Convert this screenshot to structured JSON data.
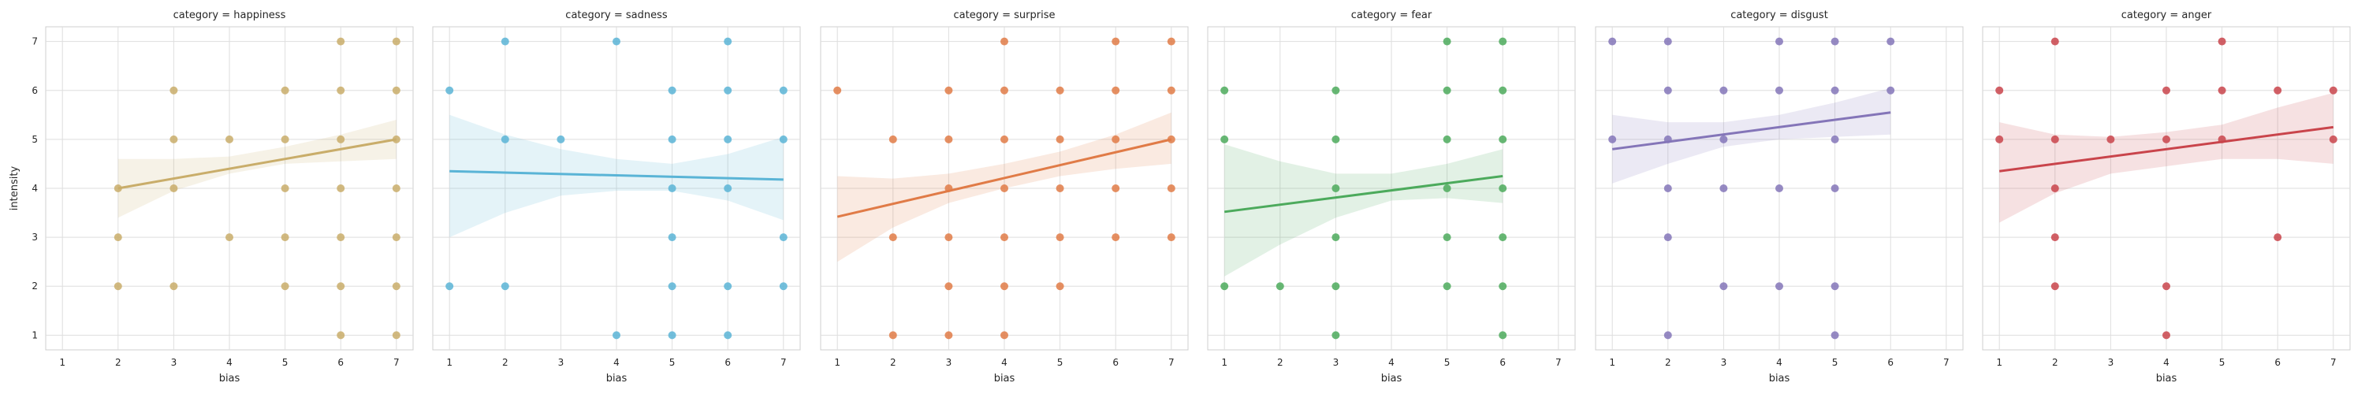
{
  "chart_data": {
    "type": "scatter",
    "layout": "facet-grid",
    "facet_variable": "category",
    "xlabel": "bias",
    "ylabel": "intensity",
    "xlim": [
      0.7,
      7.3
    ],
    "ylim": [
      0.7,
      7.3
    ],
    "xticks": [
      1,
      2,
      3,
      4,
      5,
      6,
      7
    ],
    "yticks": [
      1,
      2,
      3,
      4,
      5,
      6,
      7
    ],
    "grid": true,
    "regression": "linear fit with 95% confidence band",
    "panels": [
      {
        "title": "category = happiness",
        "color": "#c9ad6a",
        "points": [
          [
            2,
            4
          ],
          [
            2,
            3
          ],
          [
            2,
            2
          ],
          [
            3,
            6
          ],
          [
            3,
            5
          ],
          [
            3,
            4
          ],
          [
            3,
            2
          ],
          [
            4,
            5
          ],
          [
            4,
            3
          ],
          [
            5,
            6
          ],
          [
            5,
            5
          ],
          [
            5,
            4
          ],
          [
            5,
            3
          ],
          [
            5,
            2
          ],
          [
            6,
            7
          ],
          [
            6,
            6
          ],
          [
            6,
            5
          ],
          [
            6,
            4
          ],
          [
            6,
            3
          ],
          [
            6,
            2
          ],
          [
            6,
            1
          ],
          [
            7,
            7
          ],
          [
            7,
            6
          ],
          [
            7,
            5
          ],
          [
            7,
            4
          ],
          [
            7,
            3
          ],
          [
            7,
            2
          ],
          [
            7,
            1
          ]
        ],
        "fit": {
          "x": [
            2,
            7
          ],
          "y": [
            4.0,
            5.0
          ]
        },
        "band": {
          "x": [
            2,
            3,
            4,
            5,
            6,
            7
          ],
          "lower": [
            3.4,
            3.95,
            4.3,
            4.5,
            4.55,
            4.6
          ],
          "upper": [
            4.6,
            4.6,
            4.65,
            4.85,
            5.1,
            5.4
          ]
        }
      },
      {
        "title": "category = sadness",
        "color": "#5ab4d6",
        "points": [
          [
            1,
            6
          ],
          [
            1,
            2
          ],
          [
            2,
            7
          ],
          [
            2,
            5
          ],
          [
            2,
            2
          ],
          [
            3,
            5
          ],
          [
            4,
            7
          ],
          [
            4,
            1
          ],
          [
            5,
            6
          ],
          [
            5,
            5
          ],
          [
            5,
            4
          ],
          [
            5,
            3
          ],
          [
            5,
            2
          ],
          [
            5,
            1
          ],
          [
            6,
            7
          ],
          [
            6,
            6
          ],
          [
            6,
            5
          ],
          [
            6,
            4
          ],
          [
            6,
            2
          ],
          [
            6,
            1
          ],
          [
            7,
            6
          ],
          [
            7,
            5
          ],
          [
            7,
            3
          ],
          [
            7,
            2
          ]
        ],
        "fit": {
          "x": [
            1,
            7
          ],
          "y": [
            4.35,
            4.18
          ]
        },
        "band": {
          "x": [
            1,
            2,
            3,
            4,
            5,
            6,
            7
          ],
          "lower": [
            3.0,
            3.5,
            3.85,
            3.95,
            3.95,
            3.75,
            3.35
          ],
          "upper": [
            5.5,
            5.1,
            4.8,
            4.6,
            4.5,
            4.7,
            5.05
          ]
        }
      },
      {
        "title": "category = surprise",
        "color": "#e07b47",
        "points": [
          [
            1,
            6
          ],
          [
            2,
            5
          ],
          [
            2,
            3
          ],
          [
            2,
            1
          ],
          [
            3,
            6
          ],
          [
            3,
            5
          ],
          [
            3,
            4
          ],
          [
            3,
            3
          ],
          [
            3,
            2
          ],
          [
            3,
            1
          ],
          [
            4,
            7
          ],
          [
            4,
            6
          ],
          [
            4,
            5
          ],
          [
            4,
            4
          ],
          [
            4,
            3
          ],
          [
            4,
            2
          ],
          [
            4,
            1
          ],
          [
            5,
            6
          ],
          [
            5,
            5
          ],
          [
            5,
            4
          ],
          [
            5,
            3
          ],
          [
            5,
            2
          ],
          [
            6,
            7
          ],
          [
            6,
            6
          ],
          [
            6,
            5
          ],
          [
            6,
            4
          ],
          [
            6,
            3
          ],
          [
            7,
            7
          ],
          [
            7,
            6
          ],
          [
            7,
            5
          ],
          [
            7,
            4
          ],
          [
            7,
            3
          ]
        ],
        "fit": {
          "x": [
            1,
            7
          ],
          "y": [
            3.42,
            5.0
          ]
        },
        "band": {
          "x": [
            1,
            2,
            3,
            4,
            5,
            6,
            7
          ],
          "lower": [
            2.5,
            3.2,
            3.7,
            4.0,
            4.25,
            4.4,
            4.5
          ],
          "upper": [
            4.25,
            4.2,
            4.3,
            4.5,
            4.75,
            5.1,
            5.55
          ]
        }
      },
      {
        "title": "category = fear",
        "color": "#4caa5c",
        "points": [
          [
            1,
            6
          ],
          [
            1,
            5
          ],
          [
            1,
            2
          ],
          [
            2,
            2
          ],
          [
            3,
            6
          ],
          [
            3,
            5
          ],
          [
            3,
            4
          ],
          [
            3,
            3
          ],
          [
            3,
            2
          ],
          [
            3,
            1
          ],
          [
            5,
            7
          ],
          [
            5,
            6
          ],
          [
            5,
            5
          ],
          [
            5,
            4
          ],
          [
            5,
            3
          ],
          [
            5,
            2
          ],
          [
            6,
            7
          ],
          [
            6,
            6
          ],
          [
            6,
            5
          ],
          [
            6,
            4
          ],
          [
            6,
            3
          ],
          [
            6,
            2
          ],
          [
            6,
            1
          ]
        ],
        "fit": {
          "x": [
            1,
            6
          ],
          "y": [
            3.52,
            4.25
          ]
        },
        "band": {
          "x": [
            1,
            2,
            3,
            4,
            5,
            6
          ],
          "lower": [
            2.2,
            2.85,
            3.4,
            3.75,
            3.8,
            3.7
          ],
          "upper": [
            4.9,
            4.55,
            4.3,
            4.3,
            4.5,
            4.8
          ]
        }
      },
      {
        "title": "category = disgust",
        "color": "#8475b8",
        "points": [
          [
            1,
            7
          ],
          [
            1,
            5
          ],
          [
            2,
            7
          ],
          [
            2,
            6
          ],
          [
            2,
            5
          ],
          [
            2,
            4
          ],
          [
            2,
            3
          ],
          [
            2,
            1
          ],
          [
            3,
            6
          ],
          [
            3,
            5
          ],
          [
            3,
            4
          ],
          [
            3,
            2
          ],
          [
            4,
            7
          ],
          [
            4,
            6
          ],
          [
            4,
            4
          ],
          [
            4,
            2
          ],
          [
            5,
            7
          ],
          [
            5,
            6
          ],
          [
            5,
            5
          ],
          [
            5,
            4
          ],
          [
            5,
            2
          ],
          [
            5,
            1
          ],
          [
            6,
            7
          ],
          [
            6,
            6
          ]
        ],
        "fit": {
          "x": [
            1,
            6
          ],
          "y": [
            4.8,
            5.55
          ]
        },
        "band": {
          "x": [
            1,
            2,
            3,
            4,
            5,
            6
          ],
          "lower": [
            4.1,
            4.5,
            4.85,
            5.0,
            5.05,
            5.1
          ],
          "upper": [
            5.5,
            5.35,
            5.35,
            5.5,
            5.75,
            6.05
          ]
        }
      },
      {
        "title": "category = anger",
        "color": "#c9444b",
        "points": [
          [
            1,
            6
          ],
          [
            1,
            5
          ],
          [
            2,
            7
          ],
          [
            2,
            5
          ],
          [
            2,
            4
          ],
          [
            2,
            3
          ],
          [
            2,
            2
          ],
          [
            3,
            5
          ],
          [
            4,
            6
          ],
          [
            4,
            5
          ],
          [
            4,
            2
          ],
          [
            4,
            1
          ],
          [
            5,
            7
          ],
          [
            5,
            6
          ],
          [
            5,
            5
          ],
          [
            6,
            6
          ],
          [
            6,
            3
          ],
          [
            7,
            6
          ],
          [
            7,
            5
          ]
        ],
        "fit": {
          "x": [
            1,
            7
          ],
          "y": [
            4.35,
            5.25
          ]
        },
        "band": {
          "x": [
            1,
            2,
            3,
            4,
            5,
            6,
            7
          ],
          "lower": [
            3.3,
            3.9,
            4.3,
            4.45,
            4.6,
            4.6,
            4.5
          ],
          "upper": [
            5.35,
            5.1,
            5.05,
            5.15,
            5.3,
            5.65,
            5.95
          ]
        }
      }
    ]
  }
}
